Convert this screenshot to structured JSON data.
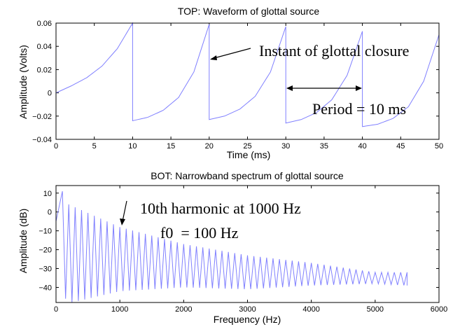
{
  "chart_data": [
    {
      "type": "line",
      "title": "TOP: Waveform of glottal source",
      "xlabel": "Time (ms)",
      "ylabel": "Amplitude (Volts)",
      "xlim": [
        0,
        50
      ],
      "ylim": [
        -0.04,
        0.06
      ],
      "xticks": [
        "0",
        "5",
        "10",
        "15",
        "20",
        "25",
        "30",
        "35",
        "40",
        "45",
        "50"
      ],
      "yticks": [
        "0.06",
        "0.04",
        "0.02",
        "0",
        "−0.02",
        "−0.04"
      ],
      "grid": false,
      "color": "#8080ff",
      "series": [
        {
          "x": [
            0,
            2,
            4,
            6,
            8,
            10,
            10,
            12,
            14,
            16,
            18,
            20,
            20,
            22,
            24,
            26,
            28,
            30,
            30,
            32,
            34,
            36,
            38,
            40,
            40,
            42,
            44,
            46,
            48,
            50
          ],
          "y": [
            0.0,
            0.006,
            0.013,
            0.023,
            0.038,
            0.06,
            -0.024,
            -0.021,
            -0.015,
            -0.004,
            0.018,
            0.059,
            -0.023,
            -0.02,
            -0.014,
            -0.003,
            0.018,
            0.057,
            -0.026,
            -0.023,
            -0.017,
            -0.006,
            0.015,
            0.053,
            -0.029,
            -0.027,
            -0.022,
            -0.012,
            0.01,
            0.05
          ]
        }
      ],
      "annotations": [
        {
          "text": "Instant of glottal closure",
          "x": 20,
          "y": 0.059
        },
        {
          "text": "Period = 10 ms",
          "x_from": 30,
          "x_to": 40,
          "y": 0.003
        }
      ]
    },
    {
      "type": "line",
      "title": "BOT: Narrowband spectrum of glottal source",
      "xlabel": "Frequency (Hz)",
      "ylabel": "Amplitude (dB)",
      "xlim": [
        0,
        6000
      ],
      "ylim": [
        -48,
        14
      ],
      "xticks": [
        "0",
        "1000",
        "2000",
        "3000",
        "4000",
        "5000",
        "6000"
      ],
      "yticks": [
        "10",
        "0",
        "−10",
        "−20",
        "−30",
        "−40"
      ],
      "grid": false,
      "color": "#8080ff",
      "f0": 100,
      "x_end": 5500,
      "peaks": {
        "x": [
          100,
          200,
          1000,
          2000,
          3000,
          4000,
          5000,
          5500
        ],
        "y": [
          11,
          4,
          -8,
          -17,
          -23,
          -27,
          -32,
          -32
        ]
      },
      "troughs": {
        "x": [
          150,
          250,
          1000,
          2000,
          3000,
          4000,
          5000,
          5500
        ],
        "y": [
          -46,
          -48,
          -42,
          -40,
          -41,
          -39,
          -38,
          -39
        ]
      },
      "annotations": [
        {
          "text": "10th harmonic at 1000 Hz",
          "x": 1000,
          "y": -8
        },
        {
          "text": "f0  = 100 Hz"
        }
      ]
    }
  ]
}
